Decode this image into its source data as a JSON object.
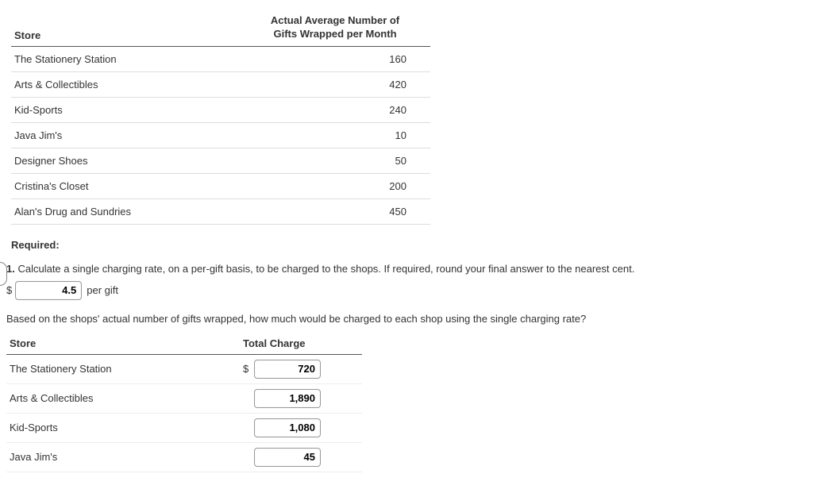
{
  "table1": {
    "headers": {
      "store": "Store",
      "num": "Actual Average Number of Gifts Wrapped per Month"
    },
    "rows": [
      {
        "store": "The Stationery Station",
        "num": "160"
      },
      {
        "store": "Arts & Collectibles",
        "num": "420"
      },
      {
        "store": "Kid-Sports",
        "num": "240"
      },
      {
        "store": "Java Jim's",
        "num": "10"
      },
      {
        "store": "Designer Shoes",
        "num": "50"
      },
      {
        "store": "Cristina's Closet",
        "num": "200"
      },
      {
        "store": "Alan's Drug and Sundries",
        "num": "450"
      }
    ]
  },
  "required_label": "Required:",
  "question1": {
    "num": "1.",
    "text": "Calculate a single charging rate, on a per-gift basis, to be charged to the shops. If required, round your final answer to the nearest cent.",
    "dollar": "$",
    "rate_value": "4.5",
    "per_gift": "per gift",
    "sub_text": "Based on the shops' actual number of gifts wrapped, how much would be charged to each shop using the single charging rate?"
  },
  "table2": {
    "headers": {
      "store": "Store",
      "charge": "Total Charge"
    },
    "dollar": "$",
    "rows": [
      {
        "store": "The Stationery Station",
        "charge": "720",
        "show_dollar": true
      },
      {
        "store": "Arts & Collectibles",
        "charge": "1,890",
        "show_dollar": false
      },
      {
        "store": "Kid-Sports",
        "charge": "1,080",
        "show_dollar": false
      },
      {
        "store": "Java Jim's",
        "charge": "45",
        "show_dollar": false
      }
    ]
  }
}
